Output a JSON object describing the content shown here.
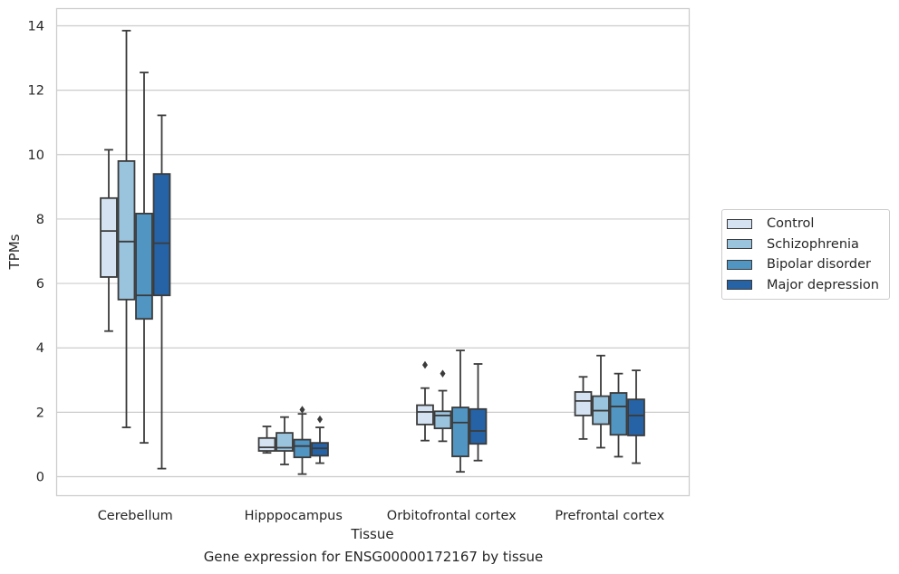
{
  "chart_data": {
    "type": "boxplot",
    "xlabel": "Tissue",
    "ylabel": "TPMs",
    "caption": "Gene expression for ENSG00000172167 by tissue",
    "ylim": [
      -0.6,
      14.5
    ],
    "yticks": [
      0,
      2,
      4,
      6,
      8,
      10,
      12,
      14
    ],
    "grid": true,
    "legend_position": "right-outside",
    "categories": [
      "Cerebellum",
      "Hipppocampus",
      "Orbitofrontal cortex",
      "Prefrontal cortex"
    ],
    "series": [
      {
        "name": "Control",
        "color": "#d4e2f1",
        "boxes": [
          {
            "whislo": 4.52,
            "q1": 6.2,
            "med": 7.63,
            "q3": 8.65,
            "whishi": 10.15,
            "fliers": []
          },
          {
            "whislo": 0.74,
            "q1": 0.8,
            "med": 0.91,
            "q3": 1.2,
            "whishi": 1.56,
            "fliers": []
          },
          {
            "whislo": 1.12,
            "q1": 1.62,
            "med": 2.01,
            "q3": 2.22,
            "whishi": 2.75,
            "fliers": [
              3.47
            ]
          },
          {
            "whislo": 1.17,
            "q1": 1.9,
            "med": 2.35,
            "q3": 2.63,
            "whishi": 3.1,
            "fliers": []
          }
        ]
      },
      {
        "name": "Schizophrenia",
        "color": "#9ac3dd",
        "boxes": [
          {
            "whislo": 1.53,
            "q1": 5.5,
            "med": 7.3,
            "q3": 9.8,
            "whishi": 13.85,
            "fliers": []
          },
          {
            "whislo": 0.38,
            "q1": 0.8,
            "med": 0.9,
            "q3": 1.36,
            "whishi": 1.85,
            "fliers": []
          },
          {
            "whislo": 1.1,
            "q1": 1.5,
            "med": 1.9,
            "q3": 2.03,
            "whishi": 2.67,
            "fliers": [
              3.2
            ]
          },
          {
            "whislo": 0.9,
            "q1": 1.63,
            "med": 2.05,
            "q3": 2.5,
            "whishi": 3.76,
            "fliers": []
          }
        ]
      },
      {
        "name": "Bipolar disorder",
        "color": "#5195c3",
        "boxes": [
          {
            "whislo": 1.05,
            "q1": 4.9,
            "med": 5.63,
            "q3": 8.17,
            "whishi": 12.55,
            "fliers": []
          },
          {
            "whislo": 0.08,
            "q1": 0.6,
            "med": 0.95,
            "q3": 1.15,
            "whishi": 1.95,
            "fliers": [
              2.08
            ]
          },
          {
            "whislo": 0.15,
            "q1": 0.63,
            "med": 1.68,
            "q3": 2.15,
            "whishi": 3.92,
            "fliers": []
          },
          {
            "whislo": 0.62,
            "q1": 1.3,
            "med": 2.18,
            "q3": 2.6,
            "whishi": 3.2,
            "fliers": []
          }
        ]
      },
      {
        "name": "Major depression",
        "color": "#2563a6",
        "boxes": [
          {
            "whislo": 0.25,
            "q1": 5.63,
            "med": 7.25,
            "q3": 9.4,
            "whishi": 11.22,
            "fliers": []
          },
          {
            "whislo": 0.42,
            "q1": 0.65,
            "med": 0.88,
            "q3": 1.05,
            "whishi": 1.53,
            "fliers": [
              1.78
            ]
          },
          {
            "whislo": 0.5,
            "q1": 1.02,
            "med": 1.42,
            "q3": 2.1,
            "whishi": 3.5,
            "fliers": []
          },
          {
            "whislo": 0.42,
            "q1": 1.28,
            "med": 1.9,
            "q3": 2.4,
            "whishi": 3.3,
            "fliers": []
          }
        ]
      }
    ]
  }
}
